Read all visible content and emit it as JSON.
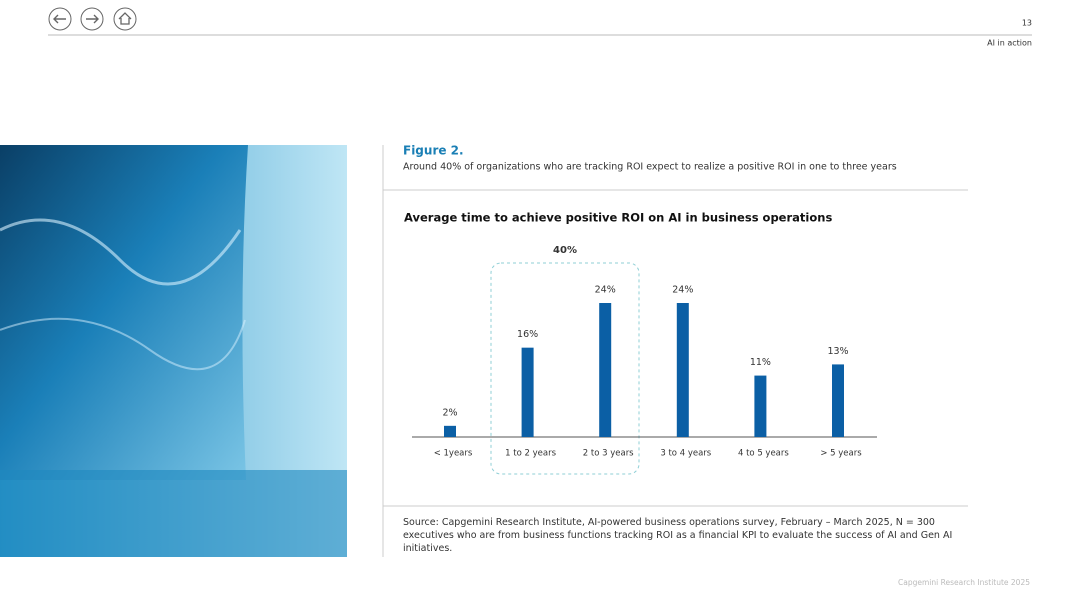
{
  "header": {
    "page_number": "13",
    "section": "AI in action"
  },
  "figure": {
    "label": "Figure 2.",
    "caption": "Around 40% of organizations who are tracking ROI expect to realize a positive ROI in one to three years"
  },
  "chart_data": {
    "type": "bar",
    "title": "Average time to achieve positive ROI on AI in business operations",
    "categories": [
      "< 1years",
      "1 to 2 years",
      "2 to 3 years",
      "3 to 4 years",
      "4 to 5 years",
      "> 5 years"
    ],
    "values": [
      2,
      16,
      24,
      24,
      11,
      13
    ],
    "value_labels": [
      "2%",
      "16%",
      "24%",
      "24%",
      "11%",
      "13%"
    ],
    "color": "#0b5fa5",
    "annotation": "40%"
  },
  "source": "Source: Capgemini Research Institute, AI-powered business operations survey, February – March 2025, N = 300 executives who are from business functions tracking ROI as a financial KPI to evaluate the success of AI and Gen AI initiatives.",
  "footer": "Capgemini Research Institute 2025"
}
